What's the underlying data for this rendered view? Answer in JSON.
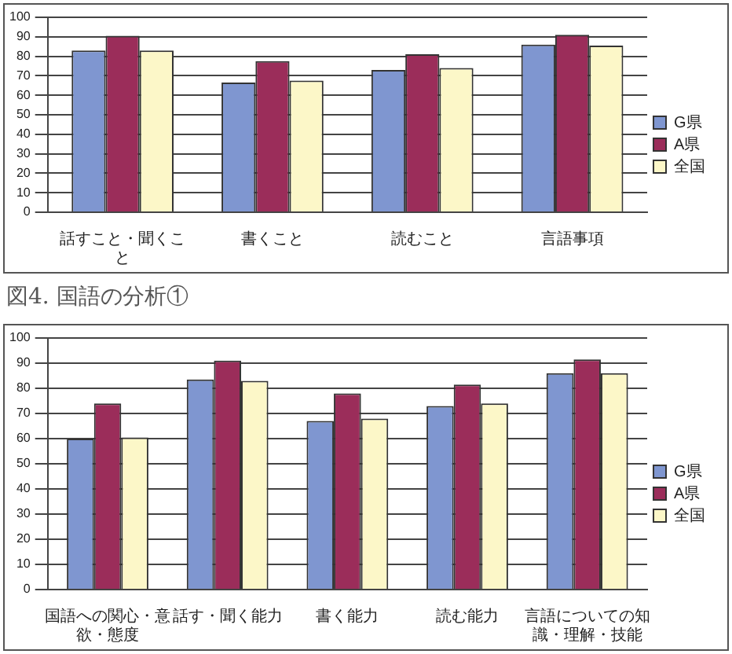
{
  "chart_data": [
    {
      "type": "bar",
      "categories": [
        "話すこと・聞くこと",
        "書くこと",
        "読むこと",
        "言語事項"
      ],
      "series": [
        {
          "name": "G県",
          "color": "#7f96d0",
          "values": [
            83,
            66.5,
            73,
            86
          ]
        },
        {
          "name": "A県",
          "color": "#9b2d5a",
          "values": [
            90.5,
            77.5,
            81,
            91
          ]
        },
        {
          "name": "全国",
          "color": "#fcf7c8",
          "values": [
            83,
            67.5,
            74,
            85.5
          ]
        }
      ],
      "ylim": [
        0,
        100
      ],
      "yticks": [
        0,
        10,
        20,
        30,
        40,
        50,
        60,
        70,
        80,
        90,
        100
      ],
      "grid": "y",
      "legend": "right",
      "annotations": [
        "図4. 国語の分析①"
      ]
    },
    {
      "type": "bar",
      "categories": [
        "国語への関心・意欲・態度",
        "話す・聞く能力",
        "書く能力",
        "読む能力",
        "言語についての知識・理解・技能"
      ],
      "series": [
        {
          "name": "G県",
          "color": "#7f96d0",
          "values": [
            60,
            83.5,
            67,
            73,
            86
          ]
        },
        {
          "name": "A県",
          "color": "#9b2d5a",
          "values": [
            74,
            91,
            78,
            81.5,
            91.5
          ]
        },
        {
          "name": "全国",
          "color": "#fcf7c8",
          "values": [
            60.5,
            83,
            68,
            74,
            86
          ]
        }
      ],
      "ylim": [
        0,
        100
      ],
      "yticks": [
        0,
        10,
        20,
        30,
        40,
        50,
        60,
        70,
        80,
        90,
        100
      ],
      "grid": "y",
      "legend": "right"
    }
  ]
}
